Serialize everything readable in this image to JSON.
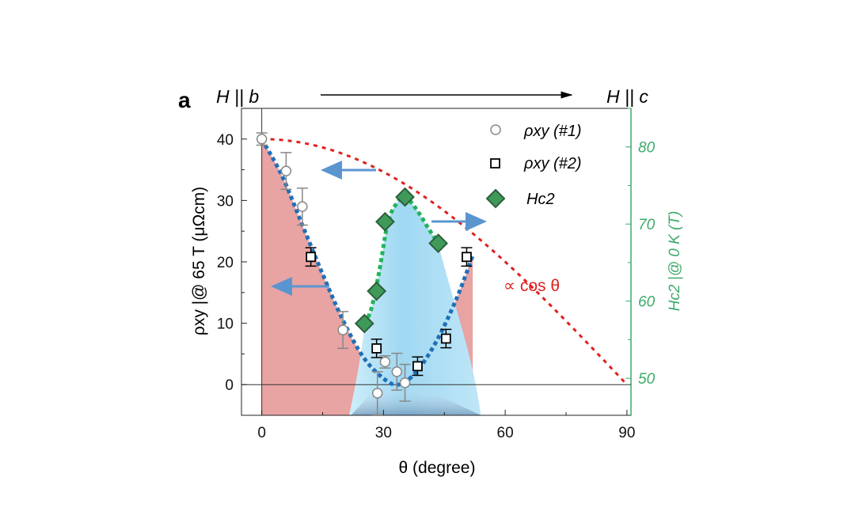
{
  "chart_data": {
    "type": "scatter",
    "panel_label": "a",
    "top_annotation": {
      "left": "H || b",
      "right": "H || c"
    },
    "xlabel": "θ (degree)",
    "ylabel": "ρxy |@ 65 T (μΩcm)",
    "ylabel_right": "Hc2 |@ 0 K (T)",
    "xlim": [
      -5,
      91
    ],
    "ylim": [
      -5,
      45
    ],
    "ylim_right": [
      45.2,
      85
    ],
    "x_ticks": [
      0,
      30,
      60,
      90
    ],
    "y_ticks": [
      0,
      10,
      20,
      30,
      40
    ],
    "y_ticks_right": [
      50,
      60,
      70,
      80
    ],
    "legend_position": "top-right",
    "annotation": "∝ cos θ",
    "series": [
      {
        "name": "ρxy (#1)",
        "marker": "circle",
        "axis": "left",
        "x": [
          0,
          6,
          10,
          20,
          28.5,
          30.4,
          33.3,
          35.3
        ],
        "y": [
          40,
          34.8,
          29,
          8.9,
          -1.4,
          3.7,
          2.1,
          0.3
        ],
        "err": [
          1,
          3,
          3,
          3,
          3.5,
          1,
          3,
          3
        ]
      },
      {
        "name": "ρxy (#2)",
        "marker": "square",
        "axis": "left",
        "x": [
          12.1,
          28.3,
          38.4,
          45.4,
          50.5
        ],
        "y": [
          20.8,
          5.9,
          3.0,
          7.5,
          20.8
        ],
        "err": [
          1.5,
          1.5,
          1.5,
          1.5,
          1.5
        ]
      },
      {
        "name": "Hc2",
        "marker": "diamond",
        "axis": "right",
        "x": [
          25.3,
          28.3,
          30.4,
          35.3,
          43.5
        ],
        "y": [
          57.1,
          61.3,
          70.3,
          73.5,
          67.5
        ]
      }
    ],
    "fits": {
      "rho_fit": {
        "x": [
          0,
          5,
          10,
          15,
          20,
          25,
          30,
          33.7,
          38,
          43,
          48,
          52
        ],
        "y": [
          40,
          34,
          26,
          18,
          10.5,
          4.5,
          1,
          0,
          2,
          7,
          14,
          21
        ]
      },
      "hc2_fit": {
        "x": [
          25.3,
          27,
          29,
          31,
          33,
          35.3,
          38,
          41,
          43.5
        ],
        "y": [
          57.1,
          59,
          64,
          70,
          72.5,
          73.5,
          72,
          69.5,
          67.5
        ]
      },
      "cos_curve_amplitude": 40
    },
    "colors": {
      "pink": "#e8a3a3",
      "blue_fit": "#1f6fb8",
      "green_fit": "#22b35a",
      "cos": "#e02020",
      "arrow": "#5b95d0",
      "right_axis": "#3daa6a",
      "diamond": "#3f9a5a"
    }
  }
}
